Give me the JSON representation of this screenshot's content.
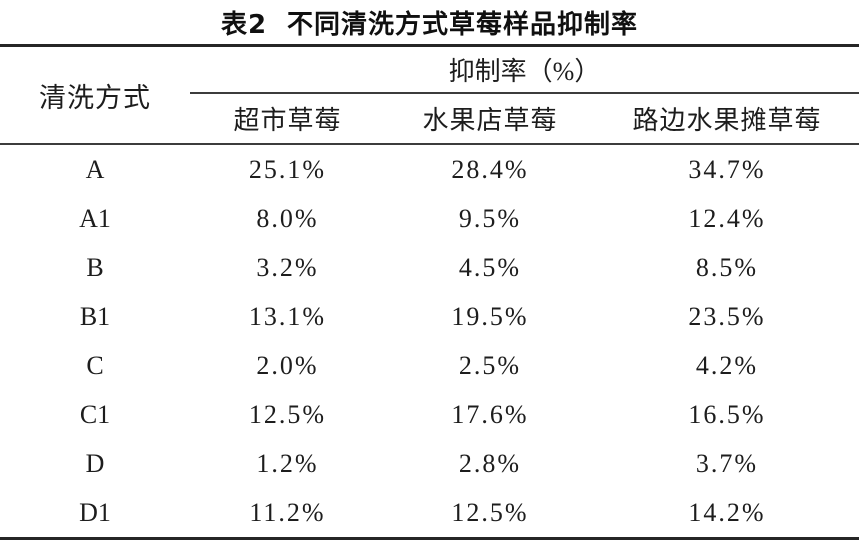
{
  "colors": {
    "background": "#ffffff",
    "text": "#1d1d1d",
    "rule": "#262626"
  },
  "title": {
    "label": "表2",
    "text": "不同清洗方式草莓样品抑制率"
  },
  "table": {
    "row_header": "清洗方式",
    "span_header": "抑制率（%）",
    "columns": [
      "超市草莓",
      "水果店草莓",
      "路边水果摊草莓"
    ],
    "rows": [
      {
        "method": "A",
        "values": [
          "25.1%",
          "28.4%",
          "34.7%"
        ]
      },
      {
        "method": "A1",
        "values": [
          "8.0%",
          "9.5%",
          "12.4%"
        ]
      },
      {
        "method": "B",
        "values": [
          "3.2%",
          "4.5%",
          "8.5%"
        ]
      },
      {
        "method": "B1",
        "values": [
          "13.1%",
          "19.5%",
          "23.5%"
        ]
      },
      {
        "method": "C",
        "values": [
          "2.0%",
          "2.5%",
          "4.2%"
        ]
      },
      {
        "method": "C1",
        "values": [
          "12.5%",
          "17.6%",
          "16.5%"
        ]
      },
      {
        "method": "D",
        "values": [
          "1.2%",
          "2.8%",
          "3.7%"
        ]
      },
      {
        "method": "D1",
        "values": [
          "11.2%",
          "12.5%",
          "14.2%"
        ]
      }
    ]
  },
  "chart_data": {
    "type": "table",
    "title": "表2 不同清洗方式草莓样品抑制率",
    "row_label": "清洗方式",
    "value_label": "抑制率（%）",
    "categories": [
      "A",
      "A1",
      "B",
      "B1",
      "C",
      "C1",
      "D",
      "D1"
    ],
    "series": [
      {
        "name": "超市草莓",
        "values": [
          25.1,
          8.0,
          3.2,
          13.1,
          2.0,
          12.5,
          1.2,
          11.2
        ]
      },
      {
        "name": "水果店草莓",
        "values": [
          28.4,
          9.5,
          4.5,
          19.5,
          2.5,
          17.6,
          2.8,
          12.5
        ]
      },
      {
        "name": "路边水果摊草莓",
        "values": [
          34.7,
          12.4,
          8.5,
          23.5,
          4.2,
          16.5,
          3.7,
          14.2
        ]
      }
    ]
  }
}
